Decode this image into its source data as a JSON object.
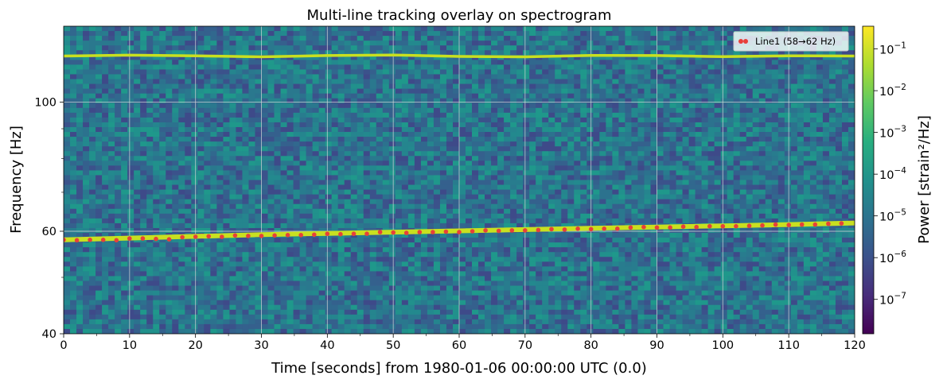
{
  "chart_data": {
    "type": "heatmap",
    "title": "Multi-line tracking overlay on spectrogram",
    "xlabel": "Time [seconds] from 1980-01-06 00:00:00 UTC (0.0)",
    "ylabel": "Frequency [Hz]",
    "colorbar_label": "Power [strain²/Hz]",
    "colormap": "viridis",
    "xlim": [
      0,
      120
    ],
    "ylim": [
      40,
      135
    ],
    "yscale": "log",
    "grid": true,
    "xticks": [
      0,
      10,
      20,
      30,
      40,
      50,
      60,
      70,
      80,
      90,
      100,
      110,
      120
    ],
    "xtick_labels": [
      "0",
      "10",
      "20",
      "30",
      "40",
      "50",
      "60",
      "70",
      "80",
      "90",
      "100",
      "110",
      "120"
    ],
    "yticks": [
      40,
      60,
      100
    ],
    "ytick_labels": [
      "40",
      "60",
      "100"
    ],
    "colorbar": {
      "scale": "log",
      "range": [
        1.5e-08,
        0.35
      ],
      "ticks": [
        1e-07,
        1e-06,
        1e-05,
        0.0001,
        0.001,
        0.01,
        0.1
      ],
      "tick_labels": [
        {
          "base": "10",
          "exp": "−7"
        },
        {
          "base": "10",
          "exp": "−6"
        },
        {
          "base": "10",
          "exp": "−5"
        },
        {
          "base": "10",
          "exp": "−4"
        },
        {
          "base": "10",
          "exp": "−3"
        },
        {
          "base": "10",
          "exp": "−2"
        },
        {
          "base": "10",
          "exp": "−1"
        }
      ]
    },
    "spectral_lines": [
      {
        "x": [
          0,
          10,
          20,
          30,
          40,
          50,
          60,
          70,
          80,
          90,
          100,
          110,
          120
        ],
        "y": [
          120.0,
          120.4,
          120.1,
          119.6,
          120.2,
          120.5,
          119.8,
          119.6,
          120.3,
          120.2,
          119.7,
          120.1,
          120.0
        ],
        "color": "#c8e020"
      },
      {
        "x": [
          0,
          10,
          20,
          30,
          40,
          50,
          60,
          70,
          80,
          90,
          100,
          110,
          120
        ],
        "y": [
          58.0,
          58.4,
          58.8,
          59.2,
          59.5,
          59.8,
          60.1,
          60.4,
          60.7,
          61.0,
          61.3,
          61.6,
          62.0
        ],
        "color": "#c8e020"
      }
    ],
    "series": [
      {
        "name": "Line1 (58→62 Hz)",
        "type": "scatter",
        "color": "#e8403a",
        "x": [
          0,
          2,
          4,
          6,
          8,
          10,
          12,
          14,
          16,
          18,
          20,
          22,
          24,
          26,
          28,
          30,
          32,
          34,
          36,
          38,
          40,
          42,
          44,
          46,
          48,
          50,
          52,
          54,
          56,
          58,
          60,
          62,
          64,
          66,
          68,
          70,
          72,
          74,
          76,
          78,
          80,
          82,
          84,
          86,
          88,
          90,
          92,
          94,
          96,
          98,
          100,
          102,
          104,
          106,
          108,
          110,
          112,
          114,
          116,
          118
        ],
        "y": [
          58.0,
          57.9,
          58.0,
          58.0,
          57.9,
          58.3,
          58.3,
          58.2,
          58.1,
          58.6,
          58.7,
          58.8,
          58.7,
          59.0,
          58.9,
          58.9,
          59.0,
          59.1,
          59.1,
          59.2,
          59.4,
          59.3,
          59.4,
          59.4,
          59.8,
          59.7,
          59.6,
          59.8,
          59.8,
          59.9,
          59.8,
          60.0,
          60.2,
          60.1,
          60.2,
          60.2,
          60.3,
          60.5,
          60.4,
          60.6,
          60.5,
          60.6,
          60.6,
          60.9,
          61.0,
          60.9,
          60.9,
          61.1,
          61.0,
          61.2,
          61.2,
          61.2,
          61.3,
          61.4,
          61.6,
          61.5,
          61.6,
          61.6,
          61.8,
          61.9
        ]
      }
    ],
    "legend": {
      "location": "upper right"
    }
  }
}
